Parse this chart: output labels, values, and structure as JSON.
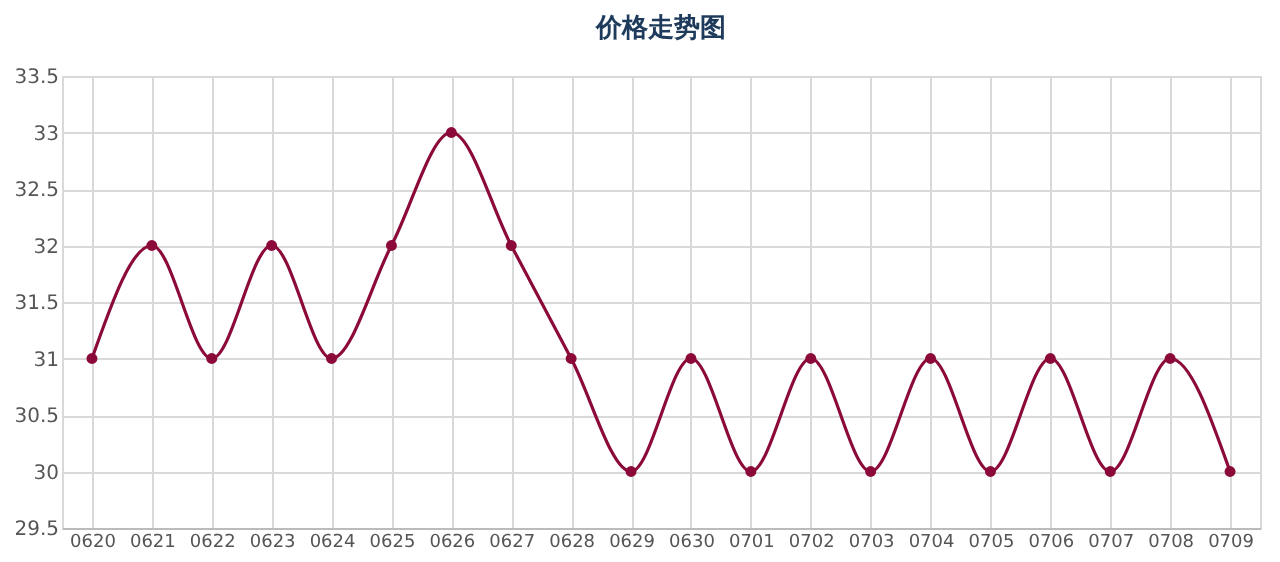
{
  "chart_data": {
    "type": "line",
    "title": "价格走势图",
    "categories": [
      "0620",
      "0621",
      "0622",
      "0623",
      "0624",
      "0625",
      "0626",
      "0627",
      "0628",
      "0629",
      "0630",
      "0701",
      "0702",
      "0703",
      "0704",
      "0705",
      "0706",
      "0707",
      "0708",
      "0709"
    ],
    "series": [
      {
        "color": "#8b0a3a",
        "values": [
          31,
          32,
          31,
          32,
          31,
          32,
          33,
          32,
          31,
          30,
          31,
          30,
          31,
          30,
          31,
          30,
          31,
          30,
          31,
          30
        ]
      }
    ],
    "ylim": [
      29.5,
      33.5
    ],
    "yticks": [
      29.5,
      30,
      30.5,
      31,
      31.5,
      32,
      32.5,
      33,
      33.5
    ],
    "grid": true,
    "marker": "circle",
    "line_style": "solid"
  }
}
